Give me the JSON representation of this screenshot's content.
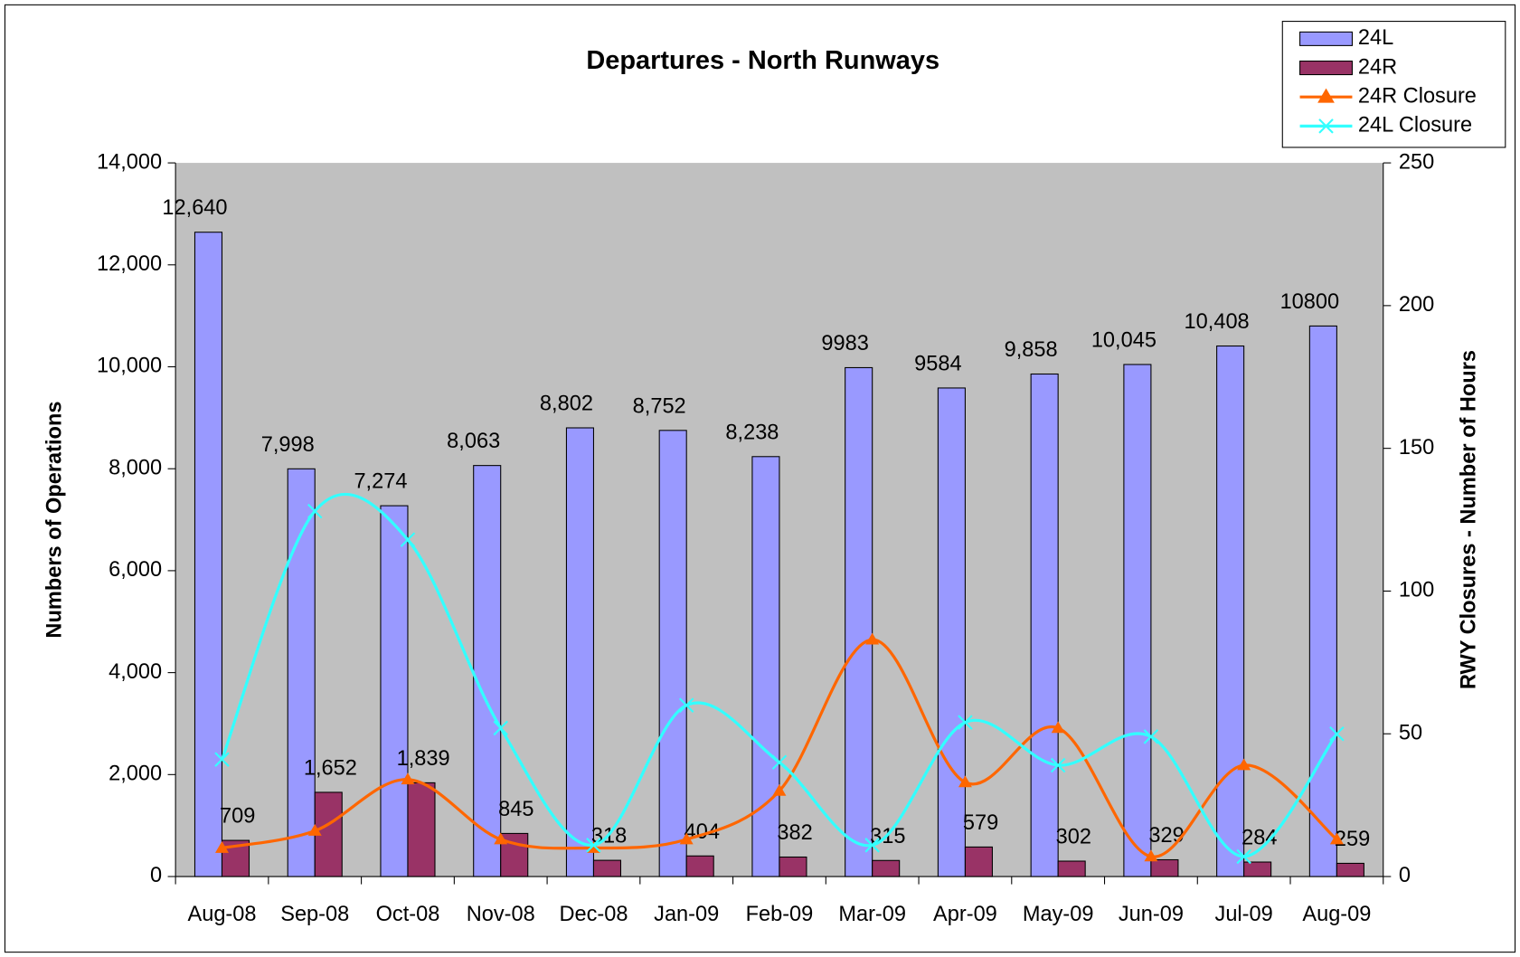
{
  "chart_data": {
    "type": "combo",
    "title": "Departures - North Runways",
    "ylabel": "Numbers of Operations",
    "y2label": "RWY Closures - Number of Hours",
    "categories": [
      "Aug-08",
      "Sep-08",
      "Oct-08",
      "Nov-08",
      "Dec-08",
      "Jan-09",
      "Feb-09",
      "Mar-09",
      "Apr-09",
      "May-09",
      "Jun-09",
      "Jul-09",
      "Aug-09"
    ],
    "ylim": [
      0,
      14000
    ],
    "yticks": [
      0,
      {
        "value": 2000,
        "label": "2,000"
      },
      {
        "value": 4000,
        "label": "4,000"
      },
      {
        "value": 6000,
        "label": "6,000"
      },
      {
        "value": 8000,
        "label": "8,000"
      },
      {
        "value": 10000,
        "label": "10,000"
      },
      {
        "value": 12000,
        "label": "12,000"
      },
      {
        "value": 14000,
        "label": "14,000"
      }
    ],
    "y2lim": [
      0,
      250
    ],
    "y2ticks": [
      0,
      50,
      100,
      150,
      200,
      250
    ],
    "legend": "upper right",
    "plot_background": "#c0c0c0",
    "series": [
      {
        "name": "24L",
        "type": "bar",
        "color": "#9999ff",
        "values": [
          12640,
          7998,
          7274,
          8063,
          8802,
          8752,
          8238,
          9983,
          9584,
          9858,
          10045,
          10408,
          10800
        ],
        "value_labels": [
          "12,640",
          "7,998",
          "7,274",
          "8,063",
          "8,802",
          "8,752",
          "8,238",
          "9983",
          "9584",
          "9,858",
          "10,045",
          "10,408",
          "10800"
        ]
      },
      {
        "name": "24R",
        "type": "bar",
        "color": "#993366",
        "values": [
          709,
          1652,
          1839,
          845,
          318,
          404,
          382,
          315,
          579,
          302,
          329,
          284,
          259
        ],
        "value_labels": [
          "709",
          "1,652",
          "1,839",
          "845",
          "318",
          "404",
          "382",
          "315",
          "579",
          "302",
          "329",
          "284",
          "259"
        ]
      },
      {
        "name": "24R Closure",
        "type": "line",
        "marker": "triangle",
        "axis": "y2",
        "color": "#ff6600",
        "values": [
          10,
          16,
          34,
          13,
          10,
          13,
          30,
          83,
          33,
          52,
          7,
          39,
          13
        ]
      },
      {
        "name": "24L Closure",
        "type": "line",
        "marker": "x",
        "axis": "y2",
        "color": "#33ffff",
        "values": [
          41,
          128,
          118,
          52,
          11,
          60,
          40,
          11,
          54,
          39,
          49,
          7,
          50
        ]
      }
    ]
  }
}
